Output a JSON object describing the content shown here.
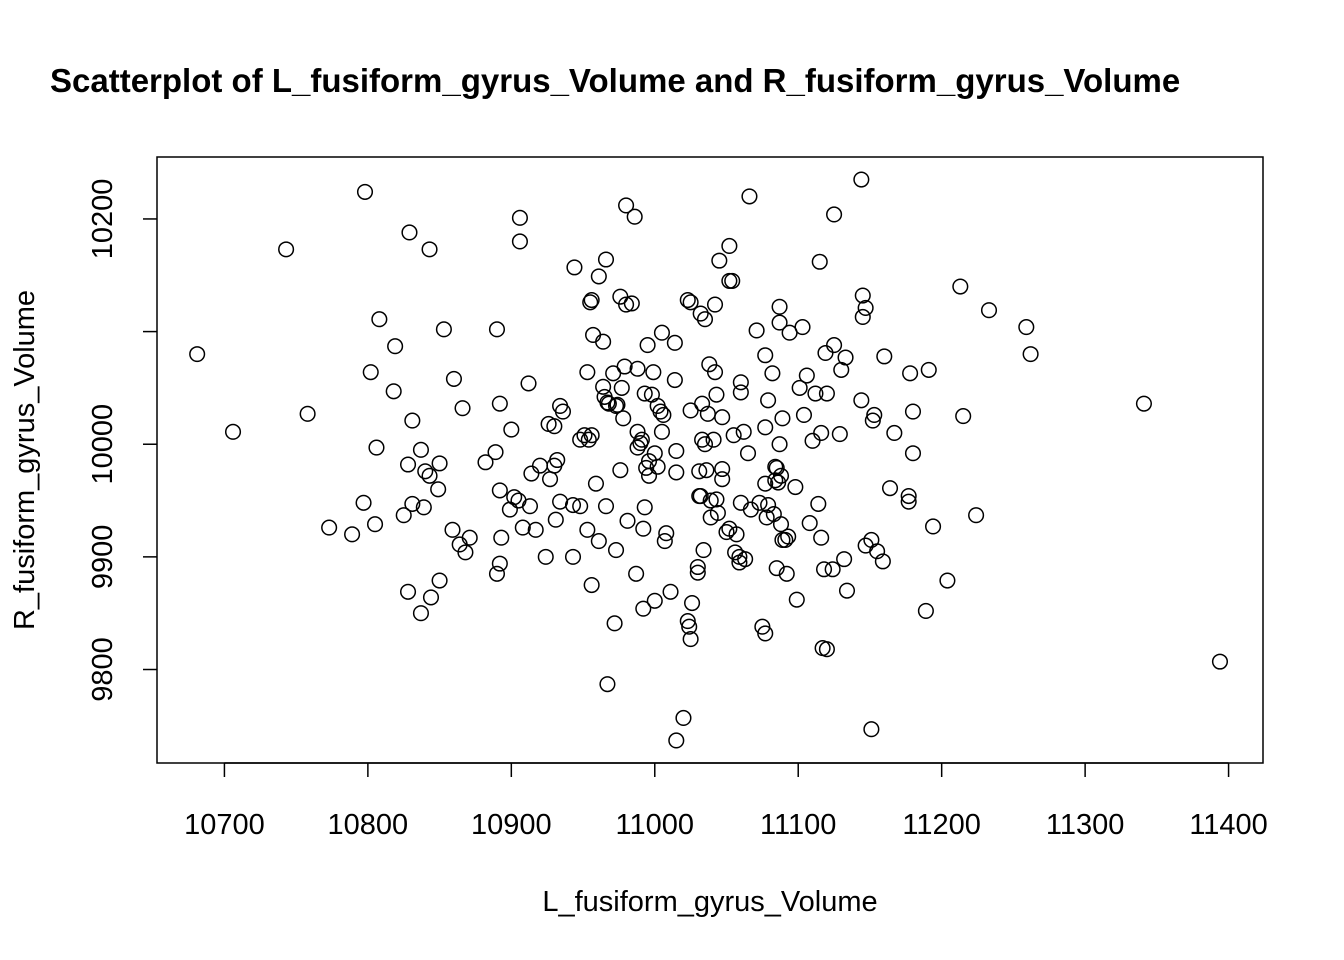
{
  "chart_data": {
    "type": "scatter",
    "title": "Scatterplot of L_fusiform_gyrus_Volume and R_fusiform_gyrus_Volume",
    "x_label": "L_fusiform_gyrus_Volume",
    "y_label": "R_fusiform_gyrus_Volume",
    "xlim": [
      10653,
      11424
    ],
    "ylim": [
      9717,
      10255
    ],
    "xticks": [
      10700,
      10800,
      10900,
      11000,
      11100,
      11200,
      11300,
      11400
    ],
    "yticks": [
      9800,
      9900,
      10000,
      {
        "value": 10100,
        "label": null
      },
      10200
    ],
    "color": "#000000",
    "x": [
      10681,
      10706,
      10743,
      10758,
      10773,
      10789,
      10798,
      10802,
      10806,
      10805,
      10808,
      10797,
      10818,
      10819,
      10825,
      10828,
      10829,
      10828,
      10831,
      10831,
      10837,
      10837,
      10839,
      10840,
      10843,
      10843,
      10844,
      10849,
      10850,
      10850,
      10853,
      10860,
      10859,
      10864,
      10866,
      10868,
      10871,
      10882,
      10889,
      10890,
      10890,
      10892,
      10892,
      10893,
      10892,
      10900,
      10899,
      10902,
      10905,
      10906,
      10906,
      10908,
      10912,
      10913,
      10914,
      10917,
      10920,
      10924,
      10926,
      10927,
      10930,
      10930,
      10931,
      10932,
      10934,
      10934,
      10936,
      10943,
      10943,
      10944,
      10948,
      10948,
      10951,
      10953,
      10953,
      10954,
      10955,
      10956,
      10956,
      10956,
      10957,
      10959,
      10961,
      10961,
      10964,
      10964,
      10965,
      10966,
      10966,
      10967,
      10967,
      10968,
      10971,
      10972,
      10973,
      10973,
      10974,
      10976,
      10976,
      10977,
      10978,
      10979,
      10980,
      10980,
      10981,
      10984,
      10986,
      10987,
      10988,
      10988,
      10988,
      10990,
      10991,
      10992,
      10992,
      10993,
      10993,
      10994,
      10995,
      10996,
      10996,
      10998,
      10999,
      11000,
      11000,
      11002,
      11002,
      11004,
      11005,
      11005,
      11006,
      11007,
      11008,
      11011,
      11014,
      11014,
      11015,
      11015,
      11015,
      11020,
      11023,
      11023,
      11024,
      11025,
      11026,
      11025,
      11025,
      11030,
      11030,
      11031,
      11031,
      11032,
      11032,
      11033,
      11033,
      11034,
      11035,
      11035,
      11036,
      11038,
      11037,
      11039,
      11039,
      11041,
      11042,
      11042,
      11043,
      11043,
      11044,
      11045,
      11047,
      11047,
      11047,
      11050,
      11052,
      11052,
      11052,
      11054,
      11056,
      11055,
      11057,
      11059,
      11059,
      11060,
      11060,
      11060,
      11062,
      11063,
      11065,
      11066,
      11067,
      11071,
      11073,
      11075,
      11077,
      11077,
      11077,
      11077,
      11078,
      11079,
      11079,
      11082,
      11083,
      11084,
      11084,
      11085,
      11085,
      11086,
      11087,
      11087,
      11087,
      11088,
      11088,
      11089,
      11089,
      11091,
      11092,
      11093,
      11094,
      11098,
      11099,
      11101,
      11103,
      11104,
      11106,
      11108,
      11110,
      11112,
      11114,
      11115,
      11116,
      11116,
      11117,
      11118,
      11119,
      11120,
      11120,
      11124,
      11125,
      11125,
      11129,
      11130,
      11132,
      11133,
      11134,
      11144,
      11144,
      11145,
      11145,
      11147,
      11147,
      11151,
      11152,
      11151,
      11153,
      11155,
      11159,
      11160,
      11164,
      11167,
      11177,
      11177,
      11178,
      11180,
      11180,
      11189,
      11191,
      11194,
      11204,
      11213,
      11215,
      11224,
      11233,
      11259,
      11262,
      11341,
      11394
    ],
    "y": [
      10080,
      10011,
      10173,
      10027,
      9926,
      9920,
      10224,
      10064,
      9997,
      9929,
      10111,
      9948,
      10047,
      10087,
      9937,
      9982,
      10188,
      9869,
      10021,
      9947,
      9995,
      9850,
      9944,
      9976,
      10173,
      9972,
      9864,
      9960,
      9983,
      9879,
      10102,
      10058,
      9924,
      9911,
      10032,
      9904,
      9917,
      9984,
      9993,
      10102,
      9885,
      10036,
      9959,
      9917,
      9894,
      10013,
      9942,
      9953,
      9950,
      10201,
      10180,
      9926,
      10054,
      9945,
      9974,
      9924,
      9981,
      9900,
      10018,
      9969,
      10016,
      9981,
      9933,
      9986,
      10034,
      9949,
      10029,
      9900,
      9946,
      10157,
      9945,
      10004,
      10008,
      10064,
      9924,
      10004,
      10126,
      10128,
      9875,
      10008,
      10097,
      9965,
      10149,
      9914,
      10091,
      10051,
      10042,
      10164,
      9945,
      9787,
      10037,
      10036,
      10063,
      9841,
      10034,
      9906,
      10035,
      9977,
      10131,
      10050,
      10023,
      10069,
      10212,
      10124,
      9932,
      10125,
      10202,
      9885,
      10067,
      10011,
      9997,
      10001,
      10004,
      9925,
      9854,
      9944,
      10045,
      9979,
      10088,
      9985,
      9972,
      10044,
      10064,
      9861,
      9992,
      9980,
      10034,
      10029,
      10011,
      10099,
      10026,
      9914,
      9921,
      9869,
      10090,
      10057,
      9737,
      9994,
      9975,
      9757,
      10128,
      9843,
      9838,
      9827,
      9859,
      10030,
      10126,
      9891,
      9886,
      9954,
      9976,
      10116,
      9954,
      10004,
      10036,
      9906,
      10111,
      10000,
      9977,
      10071,
      10027,
      9935,
      9950,
      10004,
      10064,
      10124,
      10044,
      9951,
      9939,
      10163,
      10024,
      9978,
      9969,
      9922,
      9925,
      10176,
      10145,
      10145,
      9904,
      10008,
      9920,
      9895,
      9900,
      10055,
      10046,
      9948,
      10011,
      9898,
      9992,
      10220,
      9942,
      10101,
      9948,
      9838,
      10015,
      9965,
      9832,
      10079,
      9935,
      10039,
      9946,
      10063,
      9938,
      9980,
      9968,
      9979,
      9890,
      9966,
      10000,
      10108,
      10122,
      9929,
      9972,
      9915,
      10023,
      9915,
      9885,
      9918,
      10099,
      9962,
      9862,
      10050,
      10104,
      10026,
      10061,
      9930,
      10003,
      10045,
      9947,
      10162,
      10010,
      9917,
      9819,
      9889,
      10081,
      9818,
      10045,
      9889,
      10204,
      10088,
      10009,
      10066,
      9898,
      10077,
      9870,
      10235,
      10039,
      10113,
      10132,
      10121,
      9910,
      9915,
      10021,
      9747,
      10026,
      9905,
      9896,
      10078,
      9961,
      10010,
      9954,
      9949,
      10063,
      10029,
      9992,
      9852,
      10066,
      9927,
      9879,
      10140,
      10025,
      9937,
      10119,
      10104,
      10080,
      10036,
      9807
    ]
  }
}
